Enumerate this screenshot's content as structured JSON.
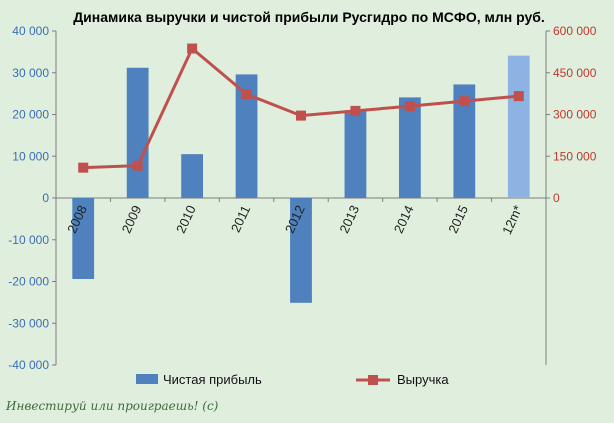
{
  "chart_data": {
    "type": "bar+line",
    "title": "Динамика выручки и чистой прибыли Русгидро по МСФО, млн руб.",
    "categories": [
      "2008",
      "2009",
      "2010",
      "2011",
      "2012",
      "2013",
      "2014",
      "2015",
      "12m*"
    ],
    "series": [
      {
        "name": "Чистая прибыль",
        "type": "bar",
        "axis": "left",
        "color": "#4e81bd",
        "highlight_last_color": "#8db3e2",
        "values": [
          -19400,
          31200,
          10500,
          29600,
          -25100,
          21000,
          24100,
          27200,
          34100
        ]
      },
      {
        "name": "Выручка",
        "type": "line",
        "axis": "right",
        "color": "#c0504d",
        "values": [
          109000,
          116000,
          537000,
          373000,
          296000,
          313000,
          330000,
          348000,
          366000
        ]
      }
    ],
    "y_left": {
      "min": -40000,
      "max": 40000,
      "ticks": [
        "40 000",
        "30 000",
        "20 000",
        "10 000",
        "0",
        "-10 000",
        "-20 000",
        "-30 000",
        "-40 000"
      ]
    },
    "y_right": {
      "min": 0,
      "max": 600000,
      "ticks": [
        "600 000",
        "450 000",
        "300 000",
        "150 000",
        "0"
      ]
    },
    "legend": {
      "position": "bottom",
      "items": [
        "Чистая прибыль",
        "Выручка"
      ]
    },
    "grid": false
  },
  "watermark": "Инвестируй или проиграешь! (c)"
}
